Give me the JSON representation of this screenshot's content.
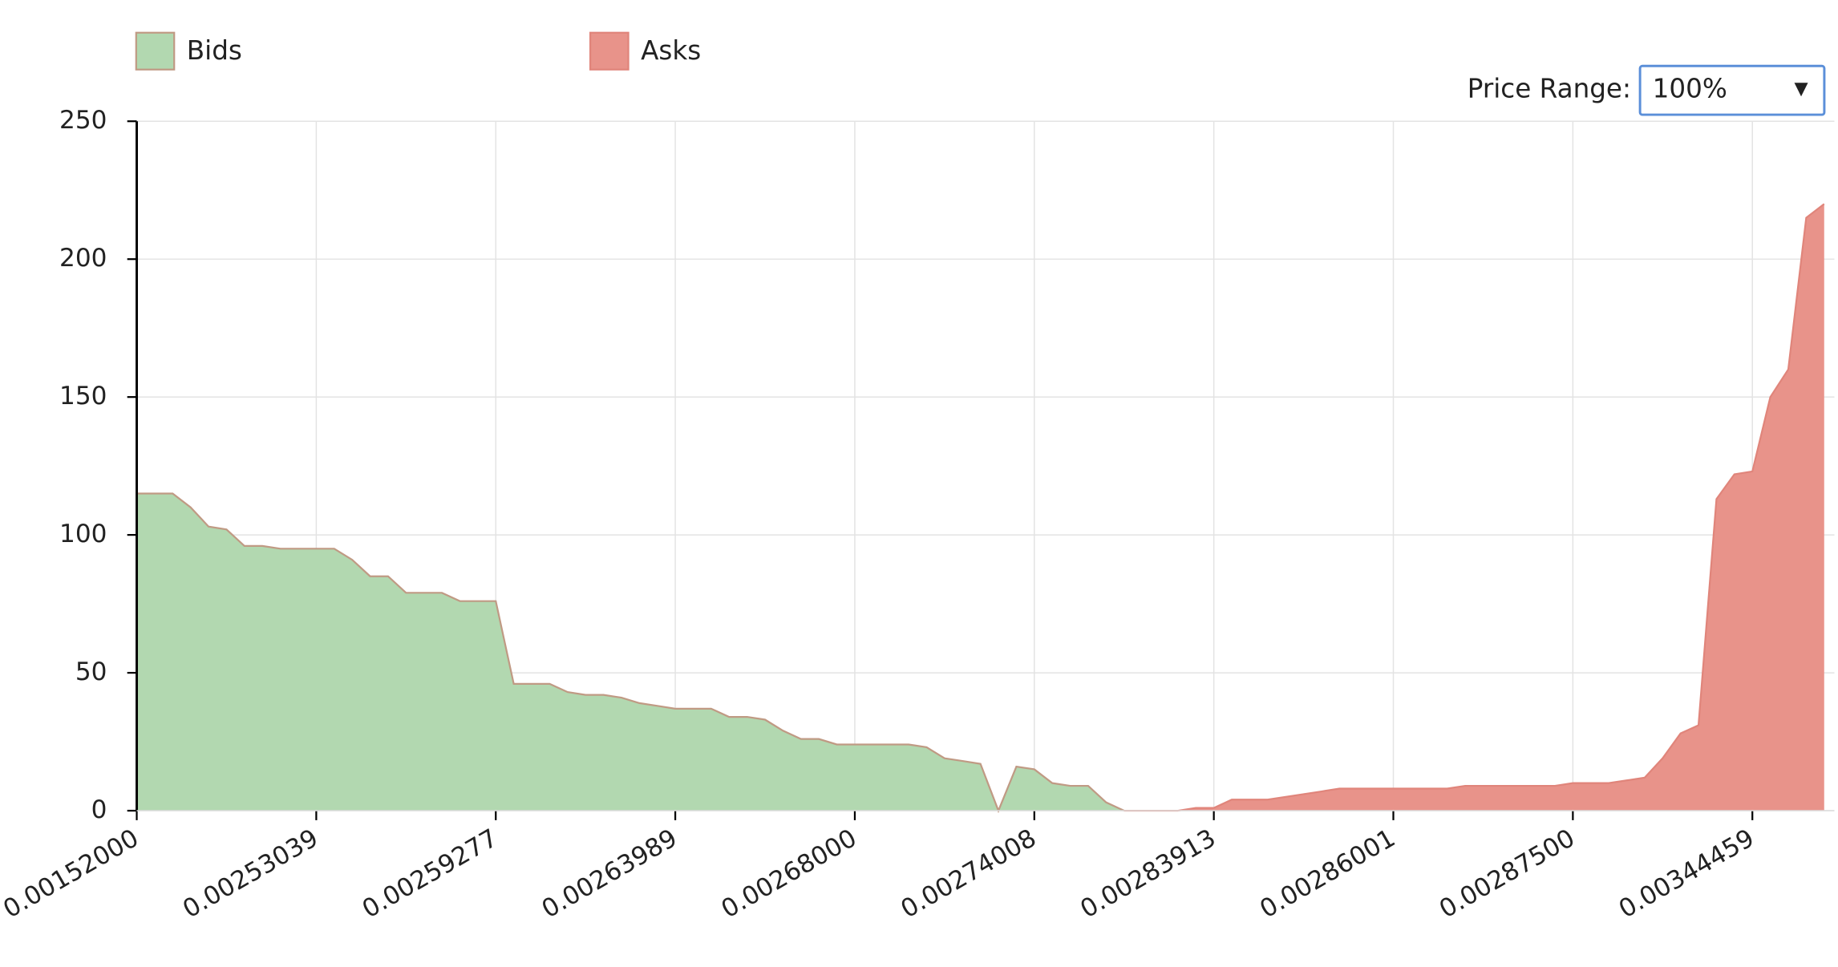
{
  "chart_data": {
    "type": "area",
    "categories": [
      "0.00152000",
      null,
      null,
      null,
      null,
      null,
      null,
      null,
      null,
      null,
      "0.00253039",
      null,
      null,
      null,
      null,
      null,
      null,
      null,
      null,
      null,
      "0.00259277",
      null,
      null,
      null,
      null,
      null,
      null,
      null,
      null,
      null,
      "0.00263989",
      null,
      null,
      null,
      null,
      null,
      null,
      null,
      null,
      null,
      "0.00268000",
      null,
      null,
      null,
      null,
      null,
      null,
      null,
      null,
      null,
      "0.00274008",
      null,
      null,
      null,
      null,
      null,
      null,
      null,
      null,
      null,
      "0.00283913",
      null,
      null,
      null,
      null,
      null,
      null,
      null,
      null,
      null,
      "0.00286001",
      null,
      null,
      null,
      null,
      null,
      null,
      null,
      null,
      null,
      "0.00287500",
      null,
      null,
      null,
      null,
      null,
      null,
      null,
      null,
      null,
      "0.00344459",
      null,
      null,
      null,
      null
    ],
    "series": [
      {
        "name": "Bids",
        "color": "#b2d8b0",
        "line_color": "#c09a84",
        "values": [
          115,
          115,
          115,
          110,
          103,
          102,
          96,
          96,
          95,
          95,
          95,
          95,
          91,
          85,
          85,
          79,
          79,
          79,
          76,
          76,
          76,
          46,
          46,
          46,
          43,
          42,
          42,
          41,
          39,
          38,
          37,
          37,
          37,
          34,
          34,
          33,
          29,
          26,
          26,
          24,
          24,
          24,
          24,
          24,
          23,
          19,
          18,
          17,
          0,
          16,
          15,
          10,
          9,
          9,
          3,
          0,
          null,
          null,
          null,
          null,
          null,
          null,
          null,
          null,
          null,
          null,
          null,
          null,
          null,
          null,
          null,
          null,
          null,
          null,
          null,
          null,
          null,
          null,
          null,
          null,
          null,
          null,
          null,
          null,
          null,
          null,
          null,
          null,
          null,
          null,
          null,
          null,
          null,
          null,
          null
        ]
      },
      {
        "name": "Asks",
        "color": "#e8938a",
        "line_color": "#e0857b",
        "values": [
          null,
          null,
          null,
          null,
          null,
          null,
          null,
          null,
          null,
          null,
          null,
          null,
          null,
          null,
          null,
          null,
          null,
          null,
          null,
          null,
          null,
          null,
          null,
          null,
          null,
          null,
          null,
          null,
          null,
          null,
          null,
          null,
          null,
          null,
          null,
          null,
          null,
          null,
          null,
          null,
          null,
          null,
          null,
          null,
          null,
          null,
          null,
          null,
          null,
          null,
          null,
          null,
          null,
          null,
          null,
          0,
          0,
          0,
          0,
          1,
          1,
          4,
          4,
          4,
          5,
          6,
          7,
          8,
          8,
          8,
          8,
          8,
          8,
          8,
          9,
          9,
          9,
          9,
          9,
          9,
          10,
          10,
          10,
          11,
          12,
          19,
          28,
          31,
          113,
          122,
          123,
          150,
          160,
          215,
          220
        ]
      }
    ],
    "ylim": [
      0,
      250
    ],
    "yticks": [
      0,
      50,
      100,
      150,
      200,
      250
    ],
    "grid": true,
    "price_range": {
      "label": "Price Range:",
      "value": "100%"
    }
  }
}
